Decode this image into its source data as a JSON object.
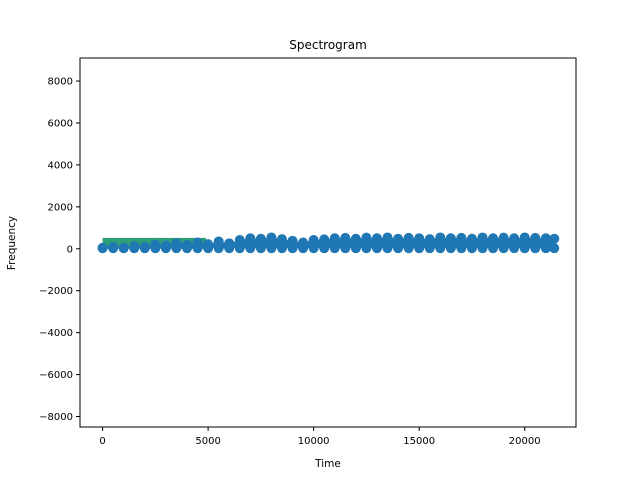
{
  "chart_data": {
    "type": "scatter",
    "title": "Spectrogram",
    "xlabel": "Time",
    "ylabel": "Frequency",
    "xlim": [
      -1070,
      22430
    ],
    "ylim": [
      -8500,
      9100
    ],
    "xticks": [
      0,
      5000,
      10000,
      15000,
      20000
    ],
    "xtick_labels": [
      "0",
      "5000",
      "10000",
      "15000",
      "20000"
    ],
    "yticks": [
      -8000,
      -6000,
      -4000,
      -2000,
      0,
      2000,
      4000,
      6000,
      8000
    ],
    "ytick_labels": [
      "−8000",
      "−6000",
      "−4000",
      "−2000",
      "0",
      "2000",
      "4000",
      "6000",
      "8000"
    ],
    "grid": false,
    "legend": "none",
    "band": {
      "x_start": 0,
      "x_end": 4900,
      "y_low": 0,
      "y_high": 520,
      "color": "#2e9d7a"
    },
    "series": [
      {
        "color": "#1f77b4",
        "x_range": [
          0,
          21400
        ],
        "y_range": [
          30,
          560
        ],
        "points": [
          [
            0,
            50
          ],
          [
            500,
            80
          ],
          [
            1000,
            40
          ],
          [
            1500,
            120
          ],
          [
            2000,
            90
          ],
          [
            2500,
            200
          ],
          [
            3000,
            150
          ],
          [
            3500,
            260
          ],
          [
            4000,
            180
          ],
          [
            4500,
            300
          ],
          [
            5000,
            220
          ],
          [
            5500,
            350
          ],
          [
            6000,
            260
          ],
          [
            6500,
            420
          ],
          [
            7000,
            500
          ],
          [
            7500,
            480
          ],
          [
            8000,
            540
          ],
          [
            8500,
            460
          ],
          [
            9000,
            380
          ],
          [
            9500,
            300
          ],
          [
            10000,
            420
          ],
          [
            10500,
            450
          ],
          [
            11000,
            500
          ],
          [
            11500,
            520
          ],
          [
            12000,
            480
          ],
          [
            12500,
            530
          ],
          [
            13000,
            500
          ],
          [
            13500,
            540
          ],
          [
            14000,
            480
          ],
          [
            14500,
            520
          ],
          [
            15000,
            500
          ],
          [
            15500,
            460
          ],
          [
            16000,
            540
          ],
          [
            16500,
            500
          ],
          [
            17000,
            520
          ],
          [
            17500,
            480
          ],
          [
            18000,
            540
          ],
          [
            18500,
            500
          ],
          [
            19000,
            530
          ],
          [
            19500,
            500
          ],
          [
            20000,
            540
          ],
          [
            20500,
            520
          ],
          [
            21000,
            500
          ],
          [
            21400,
            480
          ]
        ]
      }
    ]
  }
}
